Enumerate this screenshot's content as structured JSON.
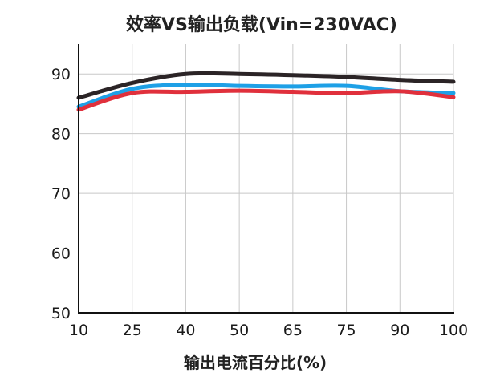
{
  "chart_data": {
    "type": "line",
    "title": "效率VS输出负载(Vin=230VAC)",
    "xlabel": "输出电流百分比(%)",
    "ylabel": "",
    "x_tick_labels": [
      "10",
      "25",
      "40",
      "50",
      "65",
      "75",
      "90",
      "100"
    ],
    "y_ticks": [
      50,
      60,
      70,
      80,
      90
    ],
    "ylim": [
      50,
      95
    ],
    "grid": true,
    "series": [
      {
        "color": "#2b2426",
        "values": [
          86.0,
          88.5,
          90.0,
          90.0,
          89.8,
          89.5,
          89.0,
          88.7
        ]
      },
      {
        "color": "#1ea0e6",
        "values": [
          84.5,
          87.5,
          88.2,
          88.0,
          87.9,
          88.0,
          87.1,
          86.8
        ]
      },
      {
        "color": "#e0303c",
        "values": [
          84.0,
          86.8,
          87.0,
          87.2,
          87.0,
          86.8,
          87.1,
          86.1
        ]
      }
    ]
  }
}
